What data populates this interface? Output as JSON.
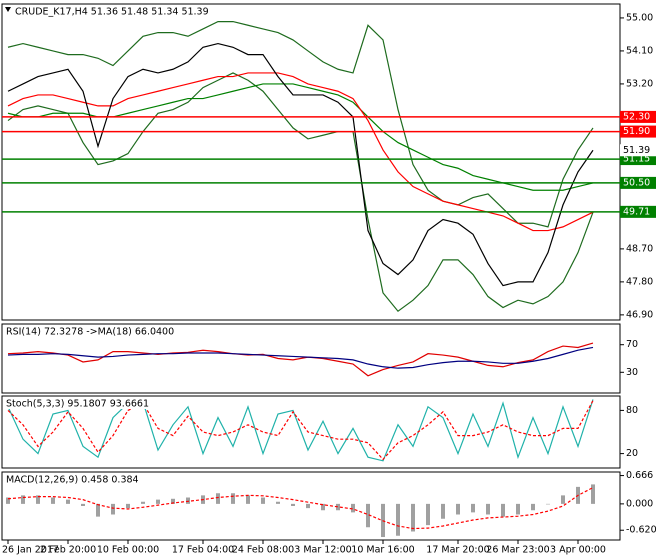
{
  "chart_data": [
    {
      "type": "line",
      "title": "CRUDE_K17,H4  51.36 51.48 51.34 51.39",
      "categories": [
        "26 Jan 2017",
        null,
        null,
        null,
        "2 Feb 20:00",
        null,
        null,
        null,
        "10 Feb 00:00",
        null,
        null,
        null,
        null,
        "17 Feb 04:00",
        null,
        null,
        null,
        "24 Feb 08:00",
        null,
        null,
        null,
        "3 Mar 12:00",
        null,
        null,
        null,
        "10 Mar 16:00",
        null,
        null,
        null,
        null,
        "17 Mar 20:00",
        null,
        null,
        null,
        "26 Mar 23:00",
        null,
        null,
        null,
        "3 Apr 00:00",
        null
      ],
      "ylim": [
        46.76,
        55.38
      ],
      "yticks": [
        {
          "value": 55,
          "label": "55.00"
        },
        {
          "value": 54.1,
          "label": "54.10"
        },
        {
          "value": 53.2,
          "label": "53.20"
        },
        {
          "value": 48.7,
          "label": "48.70"
        },
        {
          "value": 47.8,
          "label": "47.80"
        },
        {
          "value": 46.9,
          "label": "46.90"
        }
      ],
      "series": [
        {
          "color": "#1e6b1e",
          "values": [
            54.2,
            54.3,
            54.2,
            54.1,
            54.0,
            54.0,
            53.9,
            53.7,
            54.1,
            54.5,
            54.6,
            54.6,
            54.5,
            54.7,
            54.9,
            54.9,
            54.8,
            54.7,
            54.6,
            54.4,
            54.1,
            53.8,
            53.6,
            53.5,
            54.8,
            54.4,
            52.5,
            51.0,
            50.3,
            50.0,
            49.9,
            50.1,
            50.2,
            49.8,
            49.4,
            49.4,
            49.3,
            50.6,
            51.4,
            52.0
          ]
        },
        {
          "color": "#1e6b1e",
          "values": [
            52.2,
            52.5,
            52.6,
            52.5,
            52.4,
            51.6,
            51.0,
            51.1,
            51.3,
            51.9,
            52.4,
            52.5,
            52.7,
            53.1,
            53.3,
            53.5,
            53.3,
            53.0,
            52.5,
            52.0,
            51.7,
            51.8,
            51.9,
            51.9,
            49.5,
            47.5,
            47.0,
            47.3,
            47.7,
            48.4,
            48.4,
            48.0,
            47.4,
            47.1,
            47.3,
            47.2,
            47.4,
            47.8,
            48.6,
            49.7
          ]
        },
        {
          "color": "#008000",
          "values": [
            52.4,
            52.3,
            52.3,
            52.4,
            52.4,
            52.4,
            52.3,
            52.3,
            52.4,
            52.5,
            52.6,
            52.7,
            52.8,
            52.8,
            52.9,
            53.0,
            53.1,
            53.2,
            53.2,
            53.2,
            53.1,
            53.0,
            52.9,
            52.7,
            52.3,
            51.9,
            51.6,
            51.4,
            51.2,
            51.0,
            50.9,
            50.7,
            50.6,
            50.5,
            50.4,
            50.3,
            50.3,
            50.3,
            50.4,
            50.5
          ]
        },
        {
          "color": "#ff0000",
          "values": [
            52.6,
            52.8,
            52.9,
            52.9,
            52.8,
            52.7,
            52.6,
            52.6,
            52.8,
            52.9,
            53.0,
            53.1,
            53.2,
            53.3,
            53.4,
            53.4,
            53.5,
            53.5,
            53.5,
            53.4,
            53.2,
            53.1,
            53.0,
            52.8,
            52.2,
            51.4,
            50.8,
            50.4,
            50.2,
            50.0,
            49.9,
            49.8,
            49.7,
            49.6,
            49.4,
            49.2,
            49.2,
            49.3,
            49.5,
            49.7
          ]
        },
        {
          "color": "#000000",
          "values": [
            53.0,
            53.2,
            53.4,
            53.5,
            53.6,
            53.0,
            51.5,
            52.8,
            53.4,
            53.6,
            53.5,
            53.6,
            53.8,
            54.2,
            54.3,
            54.2,
            54.0,
            54.0,
            53.4,
            52.9,
            52.9,
            52.9,
            52.7,
            52.3,
            49.2,
            48.3,
            48.0,
            48.4,
            49.2,
            49.5,
            49.4,
            49.1,
            48.3,
            47.7,
            47.8,
            47.8,
            48.6,
            49.9,
            50.8,
            51.39
          ]
        }
      ],
      "levels": [
        {
          "value": 52.3,
          "label": "52.30",
          "color": "#ff0000"
        },
        {
          "value": 51.9,
          "label": "51.90",
          "color": "#ff0000"
        },
        {
          "value": 51.15,
          "label": "51.15",
          "color": "#008000"
        },
        {
          "value": 50.5,
          "label": "50.50",
          "color": "#008000"
        },
        {
          "value": 49.71,
          "label": "49.71",
          "color": "#008000"
        }
      ],
      "last_price": {
        "value": 51.39,
        "label": "51.39"
      }
    },
    {
      "type": "line",
      "title": "RSI(14) 72.3278  ->MA(18) 66.0400",
      "ylim": [
        0,
        100
      ],
      "yticks": [
        70,
        30
      ],
      "series": [
        {
          "color": "#e00000",
          "values": [
            57,
            58,
            60,
            58,
            55,
            45,
            48,
            60,
            60,
            58,
            56,
            58,
            59,
            62,
            60,
            57,
            55,
            56,
            50,
            48,
            52,
            50,
            46,
            42,
            25,
            34,
            40,
            45,
            57,
            55,
            52,
            46,
            40,
            38,
            44,
            48,
            60,
            68,
            66,
            72.3278
          ]
        },
        {
          "color": "#000080",
          "values": [
            55,
            56,
            56,
            57,
            56,
            54,
            52,
            53,
            55,
            56,
            57,
            57,
            58,
            58,
            58,
            57,
            56,
            55,
            54,
            53,
            52,
            51,
            50,
            48,
            42,
            38,
            36,
            37,
            41,
            44,
            46,
            46,
            45,
            43,
            43,
            46,
            50,
            56,
            62,
            66.04
          ]
        }
      ]
    },
    {
      "type": "line",
      "title": "Stoch(5,3,3) 95.1807 93.6661",
      "ylim": [
        0,
        100
      ],
      "yticks": [
        80,
        20
      ],
      "series": [
        {
          "color": "#20b2aa",
          "values": [
            85,
            40,
            20,
            75,
            80,
            30,
            15,
            70,
            90,
            92,
            25,
            60,
            85,
            20,
            70,
            30,
            85,
            20,
            75,
            80,
            25,
            65,
            20,
            55,
            15,
            10,
            60,
            30,
            85,
            70,
            20,
            75,
            30,
            90,
            15,
            70,
            20,
            85,
            30,
            95.1807
          ]
        },
        {
          "color": "#ff0000",
          "dash": true,
          "values": [
            80,
            60,
            30,
            50,
            78,
            55,
            22,
            45,
            80,
            90,
            55,
            45,
            72,
            50,
            45,
            50,
            60,
            50,
            45,
            78,
            50,
            45,
            40,
            40,
            35,
            12,
            35,
            45,
            60,
            78,
            45,
            45,
            50,
            60,
            50,
            45,
            45,
            55,
            55,
            93.6661
          ]
        }
      ]
    },
    {
      "type": "line",
      "title": "MACD(12,26,9) 0.458 0.384",
      "ylim": [
        -0.85,
        0.75
      ],
      "yticks": [
        0.666,
        {
          "value": 0,
          "label": "0.000"
        },
        {
          "value": -0.62,
          "label": "-0.620"
        }
      ],
      "series": [
        {
          "color": "#a0a0a0",
          "kind": "bar",
          "values": [
            0.15,
            0.2,
            0.2,
            0.15,
            0.1,
            -0.05,
            -0.3,
            -0.25,
            -0.1,
            0.05,
            0.1,
            0.12,
            0.15,
            0.2,
            0.25,
            0.25,
            0.2,
            0.15,
            0.05,
            -0.05,
            -0.1,
            -0.15,
            -0.15,
            -0.2,
            -0.55,
            -0.78,
            -0.75,
            -0.65,
            -0.5,
            -0.35,
            -0.25,
            -0.2,
            -0.25,
            -0.3,
            -0.25,
            -0.15,
            0.0,
            0.2,
            0.4,
            0.458
          ]
        },
        {
          "color": "#ff0000",
          "dash": true,
          "values": [
            0.12,
            0.15,
            0.17,
            0.17,
            0.15,
            0.1,
            -0.02,
            -0.1,
            -0.12,
            -0.08,
            -0.03,
            0.02,
            0.06,
            0.1,
            0.15,
            0.18,
            0.2,
            0.19,
            0.15,
            0.1,
            0.04,
            -0.02,
            -0.07,
            -0.12,
            -0.25,
            -0.4,
            -0.52,
            -0.58,
            -0.57,
            -0.52,
            -0.45,
            -0.38,
            -0.33,
            -0.31,
            -0.29,
            -0.25,
            -0.17,
            -0.05,
            0.2,
            0.384
          ]
        }
      ]
    }
  ]
}
